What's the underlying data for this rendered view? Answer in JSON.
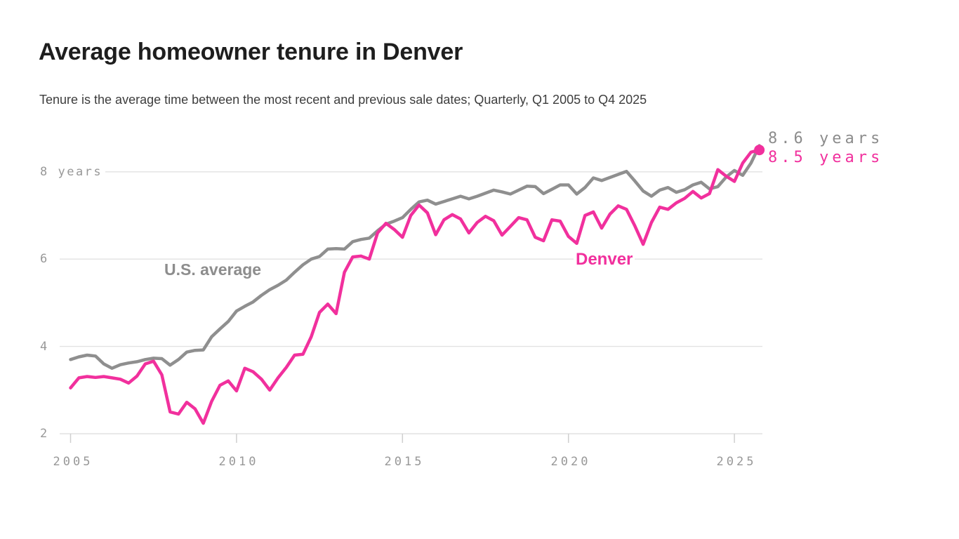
{
  "header": {
    "title": "Average homeowner tenure in Denver",
    "subtitle": "Tenure is the average time between the most recent and previous sale dates; Quarterly, Q1 2005 to Q4 2025"
  },
  "colors": {
    "background": "#ffffff",
    "title_text": "#1e1e1e",
    "subtitle_text": "#3d3d3d",
    "axis_text": "#989898",
    "gridline": "#e2e2e2",
    "us_average_gray": "#8f8f8f",
    "denver_pink": "#f1309d"
  },
  "chart_data": {
    "type": "line",
    "x_unit": "quarter",
    "x_start": "Q1 2005",
    "x_end": "Q4 2025",
    "points_per_series": 84,
    "x_ticks": [
      "2005",
      "2010",
      "2015",
      "2020",
      "2025"
    ],
    "y_ticks": [
      "2",
      "4",
      "6",
      "8"
    ],
    "y_axis_top_label": "8 years",
    "ylim": [
      2,
      8.8
    ],
    "grid": "horizontal",
    "legend_position": "inline-labels",
    "series": [
      {
        "name": "U.S. average",
        "color": "#8f8f8f",
        "end_label": "8.6 years",
        "end_value": 8.6,
        "values": [
          3.7,
          3.76,
          3.8,
          3.78,
          3.6,
          3.5,
          3.58,
          3.62,
          3.65,
          3.7,
          3.73,
          3.72,
          3.57,
          3.7,
          3.87,
          3.91,
          3.92,
          4.22,
          4.4,
          4.57,
          4.81,
          4.92,
          5.02,
          5.17,
          5.3,
          5.4,
          5.52,
          5.7,
          5.87,
          6.0,
          6.06,
          6.23,
          6.24,
          6.23,
          6.4,
          6.45,
          6.48,
          6.65,
          6.8,
          6.87,
          6.95,
          7.14,
          7.31,
          7.35,
          7.26,
          7.32,
          7.38,
          7.44,
          7.38,
          7.44,
          7.51,
          7.58,
          7.54,
          7.49,
          7.58,
          7.67,
          7.66,
          7.5,
          7.6,
          7.7,
          7.7,
          7.49,
          7.64,
          7.86,
          7.8,
          7.87,
          7.94,
          8.01,
          7.79,
          7.56,
          7.44,
          7.58,
          7.64,
          7.53,
          7.59,
          7.7,
          7.76,
          7.61,
          7.66,
          7.88,
          8.03,
          7.92,
          8.2,
          8.6
        ]
      },
      {
        "name": "Denver",
        "color": "#f1309d",
        "end_label": "8.5 years",
        "end_value": 8.5,
        "has_end_dot": true,
        "values": [
          3.05,
          3.28,
          3.31,
          3.29,
          3.31,
          3.28,
          3.25,
          3.16,
          3.32,
          3.6,
          3.66,
          3.35,
          2.5,
          2.45,
          2.72,
          2.57,
          2.24,
          2.74,
          3.11,
          3.21,
          2.98,
          3.5,
          3.42,
          3.25,
          3.0,
          3.28,
          3.52,
          3.8,
          3.82,
          4.22,
          4.78,
          4.97,
          4.75,
          5.7,
          6.05,
          6.07,
          6.0,
          6.6,
          6.82,
          6.68,
          6.5,
          7.0,
          7.24,
          7.06,
          6.56,
          6.9,
          7.02,
          6.92,
          6.6,
          6.84,
          6.98,
          6.88,
          6.55,
          6.75,
          6.95,
          6.9,
          6.5,
          6.42,
          6.9,
          6.87,
          6.52,
          6.36,
          7.0,
          7.08,
          6.71,
          7.03,
          7.22,
          7.14,
          6.76,
          6.34,
          6.84,
          7.19,
          7.14,
          7.29,
          7.39,
          7.55,
          7.4,
          7.5,
          8.05,
          7.9,
          7.78,
          8.2,
          8.45,
          8.5
        ]
      }
    ]
  }
}
